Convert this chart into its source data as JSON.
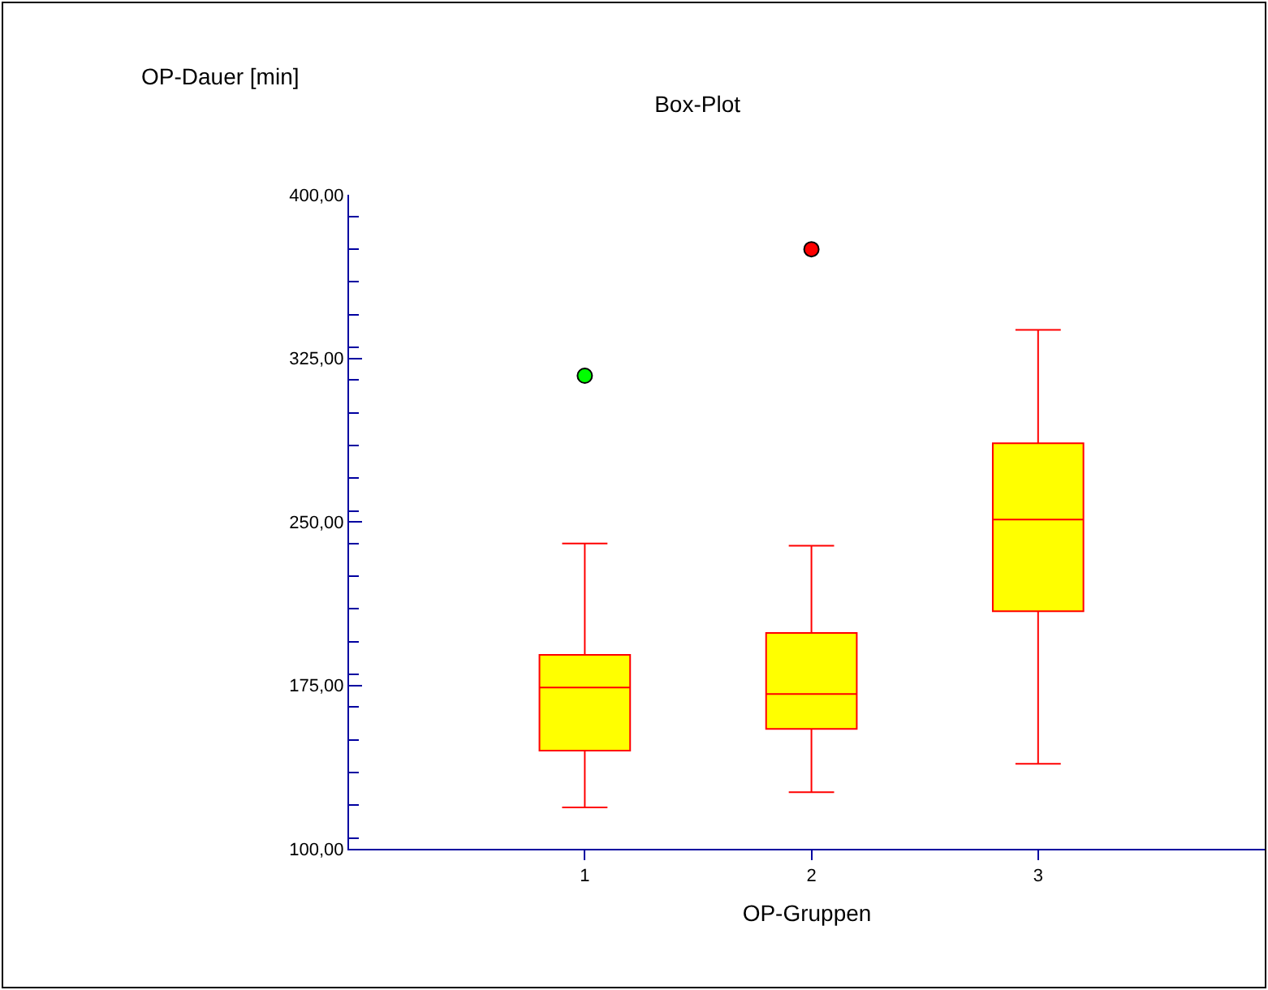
{
  "chart_data": {
    "type": "box",
    "title": "Box-Plot",
    "xlabel": "OP-Gruppen",
    "ylabel": "OP-Dauer [min]",
    "categories": [
      "1",
      "2",
      "3"
    ],
    "series": [
      {
        "color": "#ffff00",
        "boxes": [
          {
            "low": 119,
            "q1": 145,
            "median": 174,
            "q3": 189,
            "high": 240
          },
          {
            "low": 126,
            "q1": 155,
            "median": 171,
            "q3": 199,
            "high": 239
          },
          {
            "low": 139,
            "q1": 209,
            "median": 251,
            "q3": 286,
            "high": 338
          }
        ]
      },
      {
        "type": "scatter",
        "x": [
          "1",
          "2"
        ],
        "values": [
          317,
          375
        ],
        "colors": [
          "#00ff00",
          "#ff0000"
        ]
      }
    ],
    "ylim": [
      100,
      400
    ],
    "yticks": [
      {
        "value": 100,
        "label": "100,00"
      },
      {
        "value": 175,
        "label": "175,00"
      },
      {
        "value": 250,
        "label": "250,00"
      },
      {
        "value": 325,
        "label": "325,00"
      },
      {
        "value": 400,
        "label": "400,00"
      }
    ],
    "grid": false,
    "marker": "circle"
  }
}
